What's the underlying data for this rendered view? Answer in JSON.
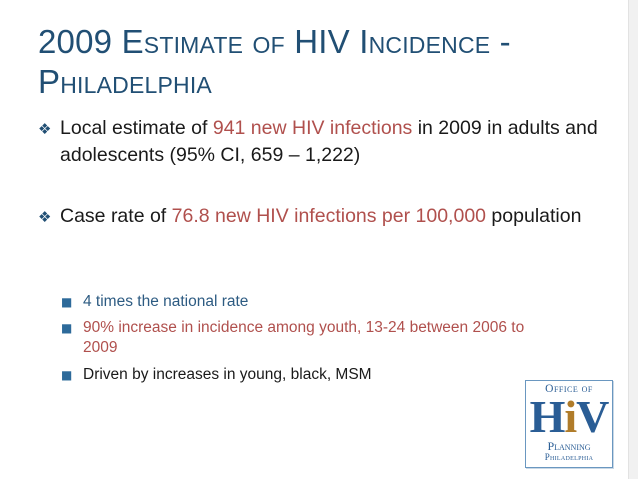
{
  "slide": {
    "title_line1": "2009 Estimate of HIV Incidence -",
    "title_line2": "Philadelphia",
    "bullets": [
      {
        "pre": "Local estimate of ",
        "highlight": "941 new HIV infections",
        "post": " in 2009 in adults and adolescents (95% CI, 659 – 1,222)"
      },
      {
        "pre": "Case rate of ",
        "highlight": "76.8 new HIV infections per 100,000",
        "post": " population"
      }
    ],
    "sub_bullets": [
      "4 times the national rate",
      "90% increase in incidence among youth, 13-24 between 2006 to 2009",
      "Driven by increases in young, black, MSM"
    ],
    "marker_icon": "diamond-bullet-icon",
    "sub_marker_icon": "square-bullet-icon"
  },
  "logo": {
    "line1": "Office of",
    "big_h": "H",
    "big_i": "i",
    "big_v": "V",
    "line3": "Planning",
    "line4": "Philadelphia"
  },
  "colors": {
    "title": "#214f74",
    "highlight": "#b0504d",
    "sub_bullet_blue": "#2d5b82",
    "logo_blue": "#2a5d95"
  }
}
